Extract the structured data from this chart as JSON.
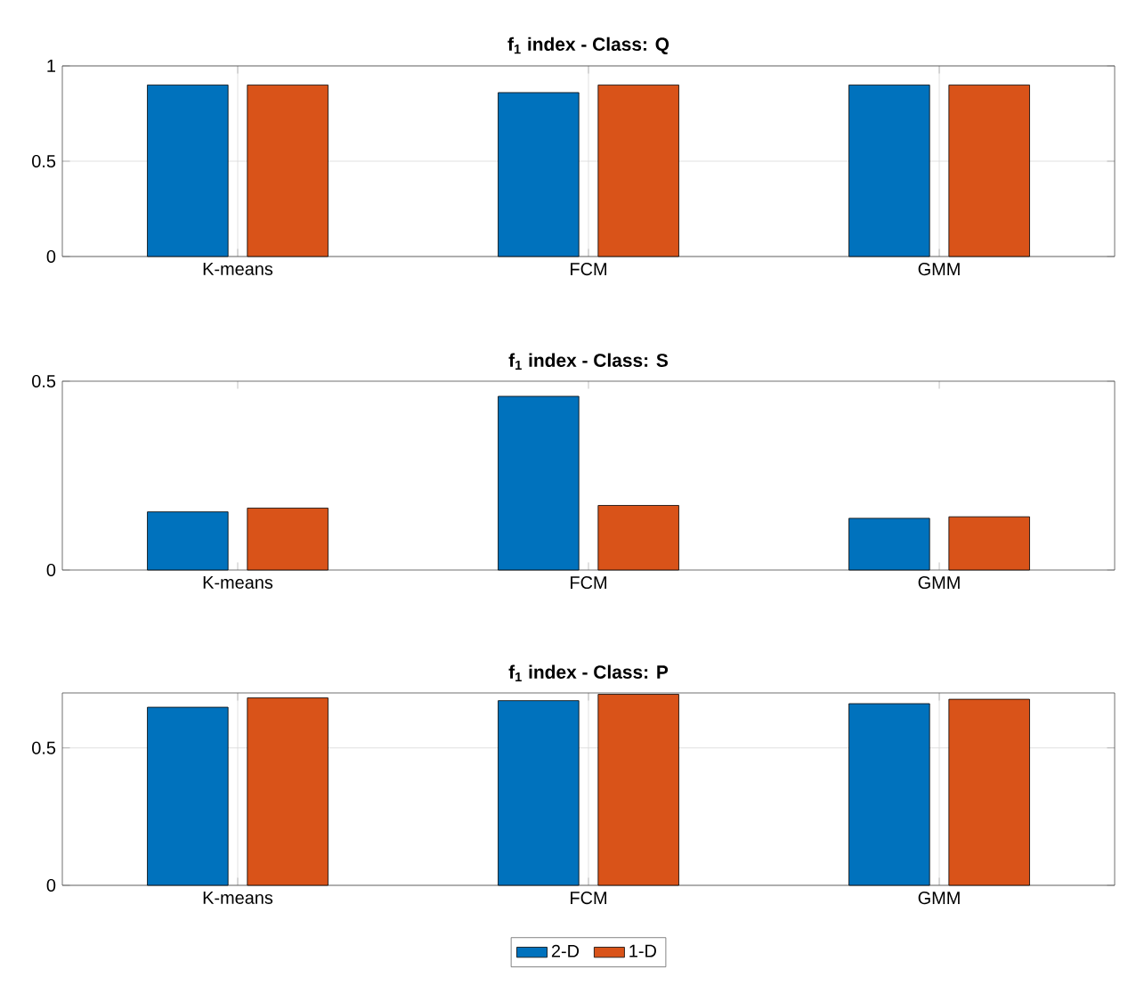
{
  "chart_data": [
    {
      "type": "bar",
      "title": "f$_{1}$ index - Class: Q",
      "categories": [
        "K-means",
        "FCM",
        "GMM"
      ],
      "series": [
        {
          "color": "#0072bd",
          "values": [
            0.9,
            0.86,
            0.9
          ]
        },
        {
          "color": "#d95319",
          "values": [
            0.9,
            0.9,
            0.9
          ]
        }
      ],
      "ylim": [
        0,
        1
      ],
      "yticks": [
        0,
        0.5,
        1
      ],
      "grid": true
    },
    {
      "type": "bar",
      "title": "f$_{1}$ index - Class: S",
      "categories": [
        "K-means",
        "FCM",
        "GMM"
      ],
      "series": [
        {
          "color": "#0072bd",
          "values": [
            0.154,
            0.46,
            0.137
          ]
        },
        {
          "color": "#d95319",
          "values": [
            0.164,
            0.171,
            0.141
          ]
        }
      ],
      "ylim": [
        0,
        0.5
      ],
      "yticks": [
        0,
        0.5
      ]
    },
    {
      "type": "bar",
      "title": "f$_{1}$ index - Class: P",
      "categories": [
        "K-means",
        "FCM",
        "GMM"
      ],
      "series": [
        {
          "name": "2-D",
          "color": "#0072bd",
          "values": [
            0.648,
            0.672,
            0.661
          ]
        },
        {
          "name": "1-D",
          "color": "#d95319",
          "values": [
            0.682,
            0.695,
            0.677
          ]
        }
      ],
      "ylim": [
        0,
        0.7
      ],
      "yticks": [
        0,
        0.5
      ],
      "grid": true,
      "legend": "bottom"
    }
  ]
}
